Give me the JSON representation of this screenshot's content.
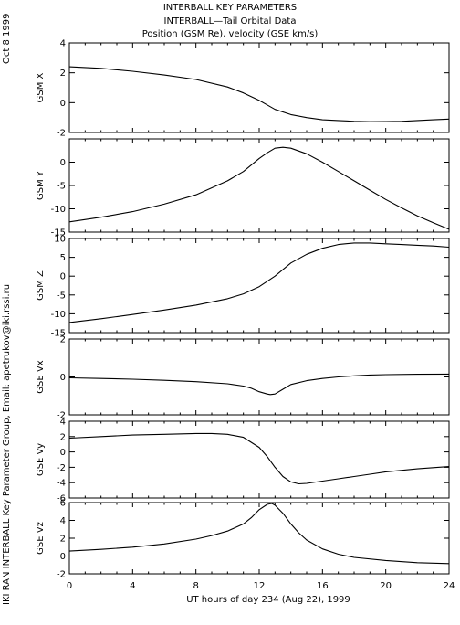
{
  "header": {
    "line1": "INTERBALL KEY PARAMETERS",
    "line2": "INTERBALL—Tail Orbital Data",
    "line3": "Position (GSM Re), velocity (GSE km/s)"
  },
  "side_date": "Oct  8 1999",
  "side_credit": "IKI RAN INTERBALL Key Parameter Group, Email: apetrukov@iki.rssi.ru",
  "chart_data": {
    "type": "line",
    "xlabel": "UT hours of day 234 (Aug 22), 1999",
    "xlim": [
      0,
      24
    ],
    "xticks": [
      0,
      4,
      8,
      12,
      16,
      20,
      24
    ],
    "line_color": "#000000",
    "panels": [
      {
        "ylabel": "GSM X",
        "ylim": [
          -2,
          4
        ],
        "yticks": [
          -2,
          0,
          2,
          4
        ],
        "x": [
          0,
          2,
          4,
          6,
          8,
          10,
          11,
          12,
          12.5,
          13,
          14,
          15,
          16,
          17,
          18,
          19,
          20,
          21,
          22,
          23,
          24
        ],
        "y": [
          2.4,
          2.3,
          2.1,
          1.85,
          1.55,
          1.05,
          0.65,
          0.15,
          -0.15,
          -0.45,
          -0.8,
          -1.0,
          -1.15,
          -1.2,
          -1.25,
          -1.28,
          -1.27,
          -1.25,
          -1.2,
          -1.15,
          -1.1
        ]
      },
      {
        "ylabel": "GSM Y",
        "ylim": [
          -15,
          5
        ],
        "yticks": [
          -15,
          -10,
          -5,
          0
        ],
        "x": [
          0,
          2,
          4,
          6,
          8,
          10,
          11,
          12,
          12.5,
          13,
          13.5,
          14,
          15,
          16,
          17,
          18,
          19,
          20,
          21,
          22,
          23,
          24
        ],
        "y": [
          -12.8,
          -11.8,
          -10.6,
          -9.0,
          -7.0,
          -4.0,
          -2.0,
          0.8,
          2.0,
          3.0,
          3.2,
          3.0,
          1.8,
          0.0,
          -2.0,
          -4.0,
          -6.0,
          -8.0,
          -9.8,
          -11.5,
          -13.0,
          -14.4
        ]
      },
      {
        "ylabel": "GSM Z",
        "ylim": [
          -15,
          10
        ],
        "yticks": [
          -15,
          -10,
          -5,
          0,
          5,
          10
        ],
        "x": [
          0,
          2,
          4,
          6,
          8,
          10,
          11,
          12,
          13,
          14,
          15,
          16,
          17,
          18,
          19,
          20,
          21,
          22,
          23,
          24
        ],
        "y": [
          -12.3,
          -11.3,
          -10.2,
          -9.0,
          -7.7,
          -6.0,
          -4.7,
          -2.8,
          0.0,
          3.5,
          5.8,
          7.4,
          8.4,
          8.8,
          8.8,
          8.6,
          8.4,
          8.2,
          8.0,
          7.7
        ]
      },
      {
        "ylabel": "GSE Vx",
        "ylim": [
          -2,
          2
        ],
        "yticks": [
          -2,
          0,
          2
        ],
        "x": [
          0,
          2,
          4,
          6,
          8,
          10,
          11,
          11.5,
          12,
          12.5,
          12.7,
          13,
          13.5,
          14,
          15,
          16,
          17,
          18,
          19,
          20,
          22,
          24
        ],
        "y": [
          -0.05,
          -0.08,
          -0.12,
          -0.18,
          -0.25,
          -0.36,
          -0.48,
          -0.6,
          -0.78,
          -0.9,
          -0.93,
          -0.9,
          -0.65,
          -0.4,
          -0.2,
          -0.08,
          0.0,
          0.06,
          0.1,
          0.12,
          0.14,
          0.15
        ]
      },
      {
        "ylabel": "GSE Vy",
        "ylim": [
          -6,
          4
        ],
        "yticks": [
          -6,
          -4,
          -2,
          0,
          2,
          4
        ],
        "x": [
          0,
          2,
          4,
          6,
          8,
          9,
          10,
          11,
          12,
          12.5,
          13,
          13.5,
          14,
          14.5,
          15,
          16,
          17,
          18,
          19,
          20,
          22,
          24
        ],
        "y": [
          1.8,
          2.0,
          2.2,
          2.3,
          2.4,
          2.4,
          2.3,
          1.9,
          0.6,
          -0.6,
          -2.0,
          -3.2,
          -3.9,
          -4.15,
          -4.1,
          -3.8,
          -3.5,
          -3.2,
          -2.9,
          -2.6,
          -2.2,
          -1.9
        ]
      },
      {
        "ylabel": "GSE Vz",
        "ylim": [
          -2,
          6
        ],
        "yticks": [
          -2,
          0,
          2,
          4,
          6
        ],
        "x": [
          0,
          2,
          4,
          6,
          8,
          9,
          10,
          11,
          11.5,
          12,
          12.5,
          12.8,
          13,
          13.5,
          14,
          14.5,
          15,
          16,
          17,
          18,
          20,
          22,
          24
        ],
        "y": [
          0.55,
          0.75,
          1.0,
          1.35,
          1.9,
          2.3,
          2.8,
          3.6,
          4.3,
          5.2,
          5.8,
          5.9,
          5.7,
          4.8,
          3.6,
          2.6,
          1.8,
          0.8,
          0.2,
          -0.15,
          -0.5,
          -0.75,
          -0.85
        ]
      }
    ]
  }
}
